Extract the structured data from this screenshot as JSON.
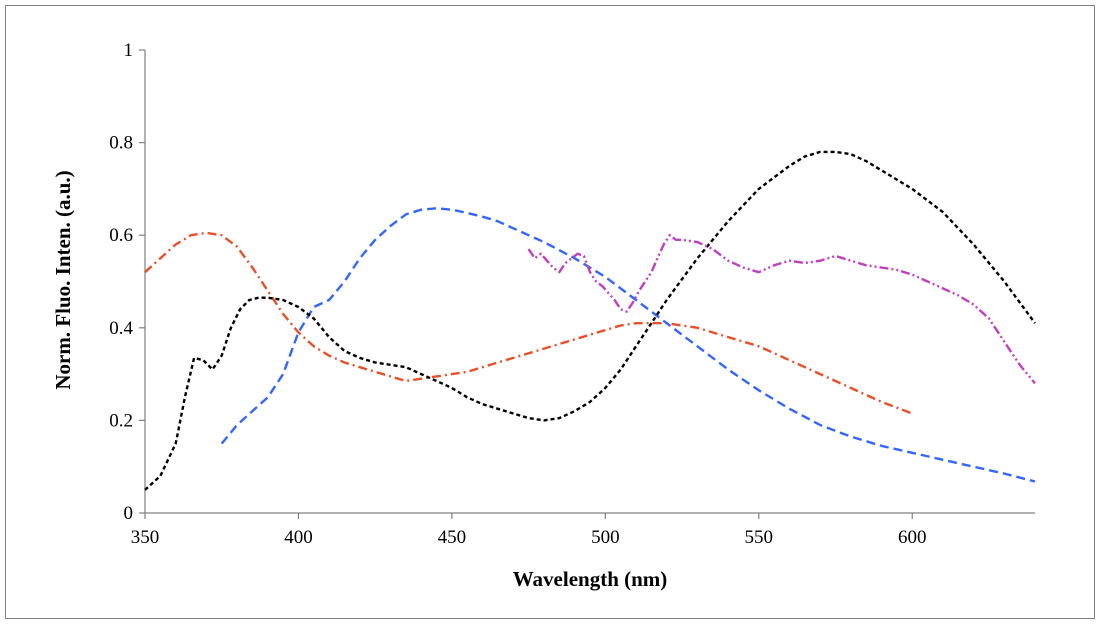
{
  "chart_data": {
    "type": "line",
    "title": "",
    "xlabel": "Wavelength (nm)",
    "ylabel": "Norm. Fluo. Inten. (a.u.)",
    "xlim": [
      350,
      640
    ],
    "ylim": [
      0,
      1
    ],
    "x_ticks": [
      350,
      400,
      450,
      500,
      550,
      600
    ],
    "y_ticks": [
      0,
      0.2,
      0.4,
      0.6,
      0.8,
      1
    ],
    "x_tick_labels": [
      "350",
      "400",
      "450",
      "500",
      "550",
      "600"
    ],
    "y_tick_labels": [
      "0",
      "0.2",
      "0.4",
      "0.6",
      "0.8",
      "1"
    ],
    "grid": false,
    "legend": "none",
    "series": [
      {
        "color": "#e8502a",
        "dash": "dash-dot",
        "x": [
          350,
          355,
          360,
          365,
          370,
          375,
          380,
          385,
          390,
          395,
          400,
          405,
          410,
          415,
          420,
          425,
          430,
          435,
          440,
          445,
          450,
          455,
          460,
          465,
          470,
          475,
          480,
          485,
          490,
          495,
          500,
          505,
          510,
          515,
          520,
          530,
          540,
          550,
          560,
          570,
          580,
          590,
          600
        ],
        "y": [
          0.52,
          0.55,
          0.58,
          0.6,
          0.605,
          0.6,
          0.575,
          0.53,
          0.48,
          0.43,
          0.39,
          0.36,
          0.34,
          0.325,
          0.315,
          0.305,
          0.295,
          0.285,
          0.29,
          0.295,
          0.3,
          0.305,
          0.315,
          0.325,
          0.335,
          0.345,
          0.355,
          0.365,
          0.375,
          0.385,
          0.395,
          0.405,
          0.41,
          0.41,
          0.41,
          0.4,
          0.38,
          0.36,
          0.33,
          0.3,
          0.27,
          0.24,
          0.215
        ]
      },
      {
        "color": "#3366ff",
        "dash": "dash",
        "x": [
          375,
          380,
          385,
          390,
          395,
          400,
          405,
          410,
          415,
          420,
          425,
          430,
          435,
          440,
          445,
          450,
          455,
          460,
          465,
          470,
          475,
          480,
          490,
          500,
          510,
          520,
          530,
          540,
          550,
          560,
          570,
          580,
          590,
          600,
          610,
          620,
          630,
          640
        ],
        "y": [
          0.15,
          0.19,
          0.22,
          0.25,
          0.3,
          0.39,
          0.445,
          0.46,
          0.5,
          0.55,
          0.59,
          0.62,
          0.645,
          0.655,
          0.658,
          0.655,
          0.648,
          0.64,
          0.63,
          0.615,
          0.6,
          0.585,
          0.55,
          0.51,
          0.46,
          0.41,
          0.36,
          0.31,
          0.265,
          0.225,
          0.19,
          0.165,
          0.145,
          0.13,
          0.115,
          0.1,
          0.085,
          0.068
        ]
      },
      {
        "color": "#000000",
        "dash": "short-dash",
        "x": [
          350,
          355,
          360,
          363,
          366,
          369,
          372,
          375,
          378,
          381,
          384,
          387,
          390,
          395,
          400,
          405,
          410,
          415,
          420,
          425,
          430,
          435,
          440,
          445,
          450,
          455,
          460,
          465,
          470,
          475,
          480,
          485,
          490,
          495,
          500,
          505,
          510,
          515,
          520,
          530,
          540,
          550,
          560,
          565,
          570,
          575,
          580,
          585,
          590,
          600,
          610,
          620,
          630,
          640
        ],
        "y": [
          0.05,
          0.08,
          0.15,
          0.25,
          0.335,
          0.33,
          0.31,
          0.34,
          0.4,
          0.44,
          0.46,
          0.465,
          0.465,
          0.46,
          0.445,
          0.42,
          0.38,
          0.35,
          0.335,
          0.325,
          0.32,
          0.315,
          0.3,
          0.285,
          0.27,
          0.25,
          0.235,
          0.225,
          0.215,
          0.205,
          0.2,
          0.205,
          0.22,
          0.24,
          0.27,
          0.31,
          0.36,
          0.41,
          0.46,
          0.55,
          0.63,
          0.7,
          0.75,
          0.77,
          0.78,
          0.78,
          0.775,
          0.76,
          0.74,
          0.7,
          0.65,
          0.58,
          0.5,
          0.41
        ]
      },
      {
        "color": "#c040c0",
        "dash": "dash-dot-dot",
        "x": [
          475,
          477,
          479,
          481,
          483,
          485,
          487,
          489,
          491,
          493,
          495,
          497,
          499,
          501,
          503,
          505,
          507,
          509,
          511,
          513,
          515,
          517,
          519,
          521,
          523,
          525,
          530,
          535,
          540,
          545,
          550,
          555,
          560,
          565,
          570,
          575,
          580,
          585,
          590,
          595,
          600,
          605,
          610,
          615,
          620,
          625,
          630,
          635,
          640
        ],
        "y": [
          0.57,
          0.55,
          0.56,
          0.545,
          0.53,
          0.52,
          0.54,
          0.55,
          0.56,
          0.555,
          0.52,
          0.5,
          0.49,
          0.475,
          0.46,
          0.44,
          0.435,
          0.455,
          0.48,
          0.5,
          0.52,
          0.55,
          0.58,
          0.6,
          0.59,
          0.59,
          0.585,
          0.57,
          0.545,
          0.53,
          0.52,
          0.535,
          0.545,
          0.54,
          0.545,
          0.555,
          0.545,
          0.535,
          0.53,
          0.525,
          0.515,
          0.5,
          0.485,
          0.47,
          0.45,
          0.42,
          0.37,
          0.32,
          0.28
        ]
      }
    ]
  }
}
